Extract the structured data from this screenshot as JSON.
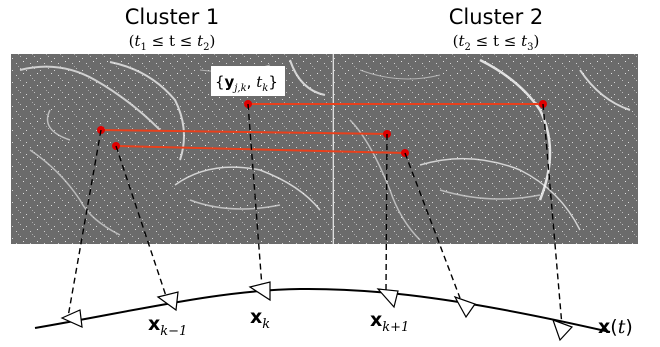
{
  "clusters": [
    {
      "title": "Cluster 1",
      "range_pre": "(",
      "t_a": "t",
      "sub_a": "1",
      "mid": " ≤ t ≤ ",
      "t_b": "t",
      "sub_b": "2",
      "range_post": ")"
    },
    {
      "title": "Cluster 2",
      "range_pre": "(",
      "t_a": "t",
      "sub_a": "2",
      "mid": " ≤ t ≤ ",
      "t_b": "t",
      "sub_b": "3",
      "range_post": ")"
    }
  ],
  "annotation": {
    "open": "{",
    "y": "y",
    "y_sub": "j,k",
    "comma": ", ",
    "t": "t",
    "t_sub": "k",
    "close": "}"
  },
  "poses": [
    {
      "main": "x",
      "sub": "k−1"
    },
    {
      "main": "x",
      "sub": "k"
    },
    {
      "main": "x",
      "sub": "k+1"
    }
  ],
  "trajectory": {
    "main": "x",
    "arg_open": "(",
    "arg": "t",
    "arg_close": ")"
  },
  "colors": {
    "track": "#e8401c",
    "point": "#e00000",
    "panel": "#6b6b6b"
  }
}
